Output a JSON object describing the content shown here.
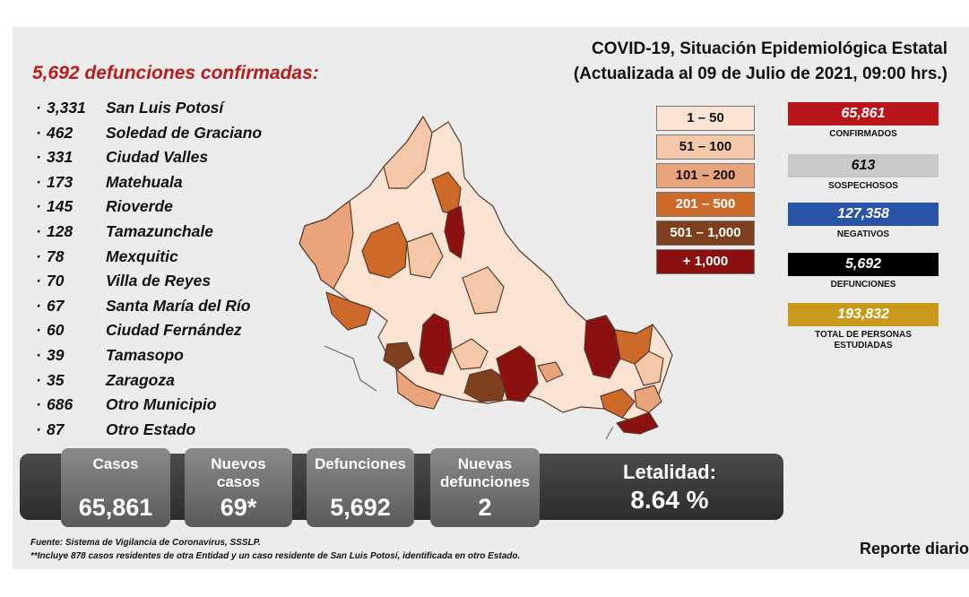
{
  "headline": "5,692 defunciones confirmadas:",
  "title_line1": "COVID-19, Situación Epidemiológica Estatal",
  "title_line2": "(Actualizada al 09 de Julio de 2021, 09:00 hrs.)",
  "municipalities": [
    {
      "count": "3,331",
      "name": "San Luis Potosí"
    },
    {
      "count": "462",
      "name": "Soledad de Graciano"
    },
    {
      "count": "331",
      "name": "Ciudad Valles"
    },
    {
      "count": "173",
      "name": "Matehuala"
    },
    {
      "count": "145",
      "name": "Rioverde"
    },
    {
      "count": "128",
      "name": "Tamazunchale"
    },
    {
      "count": "78",
      "name": "Mexquitic"
    },
    {
      "count": "70",
      "name": "Villa de Reyes"
    },
    {
      "count": "67",
      "name": "Santa María del Río"
    },
    {
      "count": "60",
      "name": "Ciudad Fernández"
    },
    {
      "count": "39",
      "name": "Tamasopo"
    },
    {
      "count": "35",
      "name": "Zaragoza"
    },
    {
      "count": "686",
      "name": "Otro Municipio"
    },
    {
      "count": "87",
      "name": "Otro Estado"
    }
  ],
  "legend": [
    {
      "label": "1 – 50",
      "color": "#fbe3d3",
      "text_color": "#111111"
    },
    {
      "label": "51 – 100",
      "color": "#f3c7a8",
      "text_color": "#111111"
    },
    {
      "label": "101 – 200",
      "color": "#e9a47b",
      "text_color": "#111111"
    },
    {
      "label": "201 – 500",
      "color": "#cd6a2a",
      "text_color": "#ffffff"
    },
    {
      "label": "501 – 1,000",
      "color": "#7d3f1c",
      "text_color": "#ffffff"
    },
    {
      "label": "+ 1,000",
      "color": "#8b1010",
      "text_color": "#ffffff"
    }
  ],
  "stats": [
    {
      "value": "65,861",
      "label": "CONFIRMADOS",
      "color": "#b8161a",
      "text_color": "#ffffff"
    },
    {
      "value": "613",
      "label": "SOSPECHOSOS",
      "color": "#c9c9c9",
      "text_color": "#111111"
    },
    {
      "value": "127,358",
      "label": "NEGATIVOS",
      "color": "#2a55a6",
      "text_color": "#ffffff"
    },
    {
      "value": "5,692",
      "label": "DEFUNCIONES",
      "color": "#000000",
      "text_color": "#ffffff"
    },
    {
      "value": "193,832",
      "label": "TOTAL DE PERSONAS ESTUDIADAS",
      "color": "#c79a1b",
      "text_color": "#ffffff"
    }
  ],
  "summary": {
    "casos_label": "Casos",
    "casos_value": "65,861",
    "nuevos_label_1": "Nuevos",
    "nuevos_label_2": "casos",
    "nuevos_value": "69*",
    "def_label": "Defunciones",
    "def_value": "5,692",
    "nuevas_def_label_1": "Nuevas",
    "nuevas_def_label_2": "defunciones",
    "nuevas_def_value": "2",
    "letalidad_label": "Letalidad:",
    "letalidad_value": "8.64 %"
  },
  "footnote_1": "Fuente: Sistema de Vigilancia de Coronavirus, SSSLP.",
  "footnote_2": "**Incluye 878 casos residentes de otra Entidad y un caso residente de San Luis Potosí, identificada en otro Estado.",
  "reporte": "Reporte diario"
}
